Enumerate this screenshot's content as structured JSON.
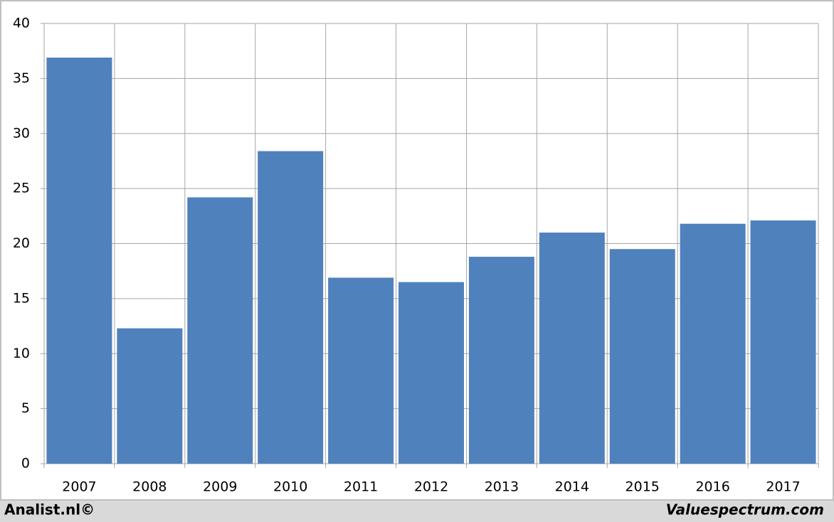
{
  "chart_data": {
    "type": "bar",
    "categories": [
      "2007",
      "2008",
      "2009",
      "2010",
      "2011",
      "2012",
      "2013",
      "2014",
      "2015",
      "2016",
      "2017"
    ],
    "values": [
      36.9,
      12.3,
      24.2,
      28.4,
      16.9,
      16.5,
      18.8,
      21.0,
      19.5,
      21.8,
      22.1
    ],
    "color": "#4f81bd",
    "ylim": [
      0,
      40
    ],
    "yticks": [
      0,
      5,
      10,
      15,
      20,
      25,
      30,
      35,
      40
    ],
    "grid": true
  },
  "footer": {
    "left": "Analist.nl©",
    "right": "Valuespectrum.com"
  }
}
